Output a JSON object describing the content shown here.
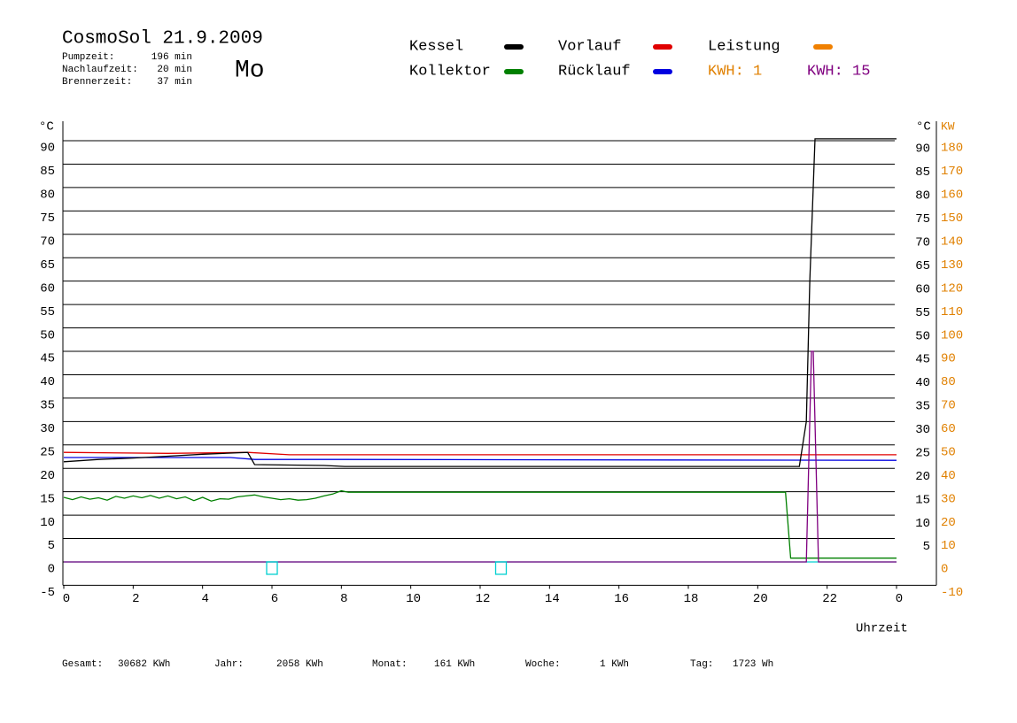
{
  "header": {
    "title": "CosmoSol 21.9.2009",
    "day": "Mo",
    "stats": [
      [
        "Pumpzeit:",
        "196 min"
      ],
      [
        "Nachlaufzeit:",
        "20 min"
      ],
      [
        "Brennerzeit:",
        "37 min"
      ]
    ]
  },
  "legend": [
    {
      "name": "Kessel",
      "color": "#000000"
    },
    {
      "name": "Kollektor",
      "color": "#008000"
    },
    {
      "name": "Vorlauf",
      "color": "#e00000"
    },
    {
      "name": "Rücklauf",
      "color": "#0000e0"
    },
    {
      "name": "Leistung",
      "color": "#f08000"
    }
  ],
  "kwh": [
    {
      "label": "KWH: 1",
      "color": "#e08000"
    },
    {
      "label": "KWH: 15",
      "color": "#800080"
    }
  ],
  "chart_data": {
    "type": "line",
    "y_unit": "°C",
    "y_right_unit": "°C",
    "y2_unit": "KW",
    "x_label": "Uhrzeit",
    "xlim": [
      0,
      24
    ],
    "xticks": [
      0,
      2,
      4,
      6,
      8,
      10,
      12,
      14,
      16,
      18,
      20,
      22,
      {
        "value": 24,
        "label": "0"
      }
    ],
    "ylim": [
      -5,
      95
    ],
    "yticks": [
      -5,
      0,
      5,
      10,
      15,
      20,
      25,
      30,
      35,
      40,
      45,
      50,
      55,
      60,
      65,
      70,
      75,
      80,
      85,
      90
    ],
    "y_right_ticks": [
      5,
      10,
      15,
      20,
      25,
      30,
      35,
      40,
      45,
      50,
      55,
      60,
      65,
      70,
      75,
      80,
      85,
      90
    ],
    "y2lim": [
      -10,
      190
    ],
    "y2ticks": [
      -10,
      0,
      10,
      20,
      30,
      40,
      50,
      60,
      70,
      80,
      90,
      100,
      110,
      120,
      130,
      140,
      150,
      160,
      170,
      180
    ],
    "grid": true,
    "series": [
      {
        "color": "#00d0d0",
        "x": [
          0,
          24
        ],
        "values": [
          0,
          0
        ]
      },
      {
        "color": "#e00000",
        "x": [
          0,
          3,
          5.3,
          6.5,
          24
        ],
        "values": [
          23.4,
          23.2,
          23.4,
          22.9,
          22.9
        ]
      },
      {
        "color": "#0000e0",
        "x": [
          0,
          4.8,
          5.5,
          8,
          24
        ],
        "values": [
          22.3,
          22.3,
          21.9,
          21.9,
          21.7
        ]
      },
      {
        "color": "#000000",
        "x": [
          0,
          1,
          2,
          3,
          4,
          5.3,
          5.5,
          7.5,
          8.1,
          21.2,
          21.4,
          21.5,
          21.65,
          24
        ],
        "values": [
          21.4,
          21.9,
          22.2,
          22.6,
          23.0,
          23.4,
          20.8,
          20.6,
          20.4,
          20.4,
          30,
          60,
          90.4,
          90.4
        ]
      },
      {
        "color": "#008000",
        "x": [
          0,
          0.25,
          0.5,
          0.75,
          1,
          1.25,
          1.5,
          1.75,
          2,
          2.25,
          2.5,
          2.75,
          3,
          3.25,
          3.5,
          3.75,
          4,
          4.25,
          4.5,
          4.75,
          5,
          5.25,
          5.5,
          5.75,
          6,
          6.25,
          6.5,
          6.75,
          7,
          7.25,
          7.5,
          7.75,
          8,
          8.2,
          20.8,
          20.95,
          24
        ],
        "values": [
          13.8,
          13.3,
          13.9,
          13.4,
          13.7,
          13.2,
          14.0,
          13.6,
          14.1,
          13.7,
          14.2,
          13.6,
          14.1,
          13.5,
          13.9,
          13.1,
          13.8,
          13.0,
          13.5,
          13.4,
          13.9,
          14.1,
          14.3,
          13.9,
          13.6,
          13.3,
          13.5,
          13.2,
          13.3,
          13.6,
          14.1,
          14.5,
          15.2,
          14.9,
          14.9,
          0.8,
          0.8
        ]
      },
      {
        "color": "#800080",
        "axis": "y2",
        "x": [
          0,
          21.4,
          21.55,
          21.6,
          21.75,
          24
        ],
        "values": [
          0,
          0,
          90,
          90,
          0,
          0
        ]
      }
    ],
    "events_x": [
      6,
      12.6
    ]
  },
  "footer": [
    [
      "Gesamt:",
      "30682 KWh"
    ],
    [
      "Jahr:",
      "2058 KWh"
    ],
    [
      "Monat:",
      "161 KWh"
    ],
    [
      "Woche:",
      "1 KWh"
    ],
    [
      "Tag:",
      "1723 Wh"
    ]
  ]
}
